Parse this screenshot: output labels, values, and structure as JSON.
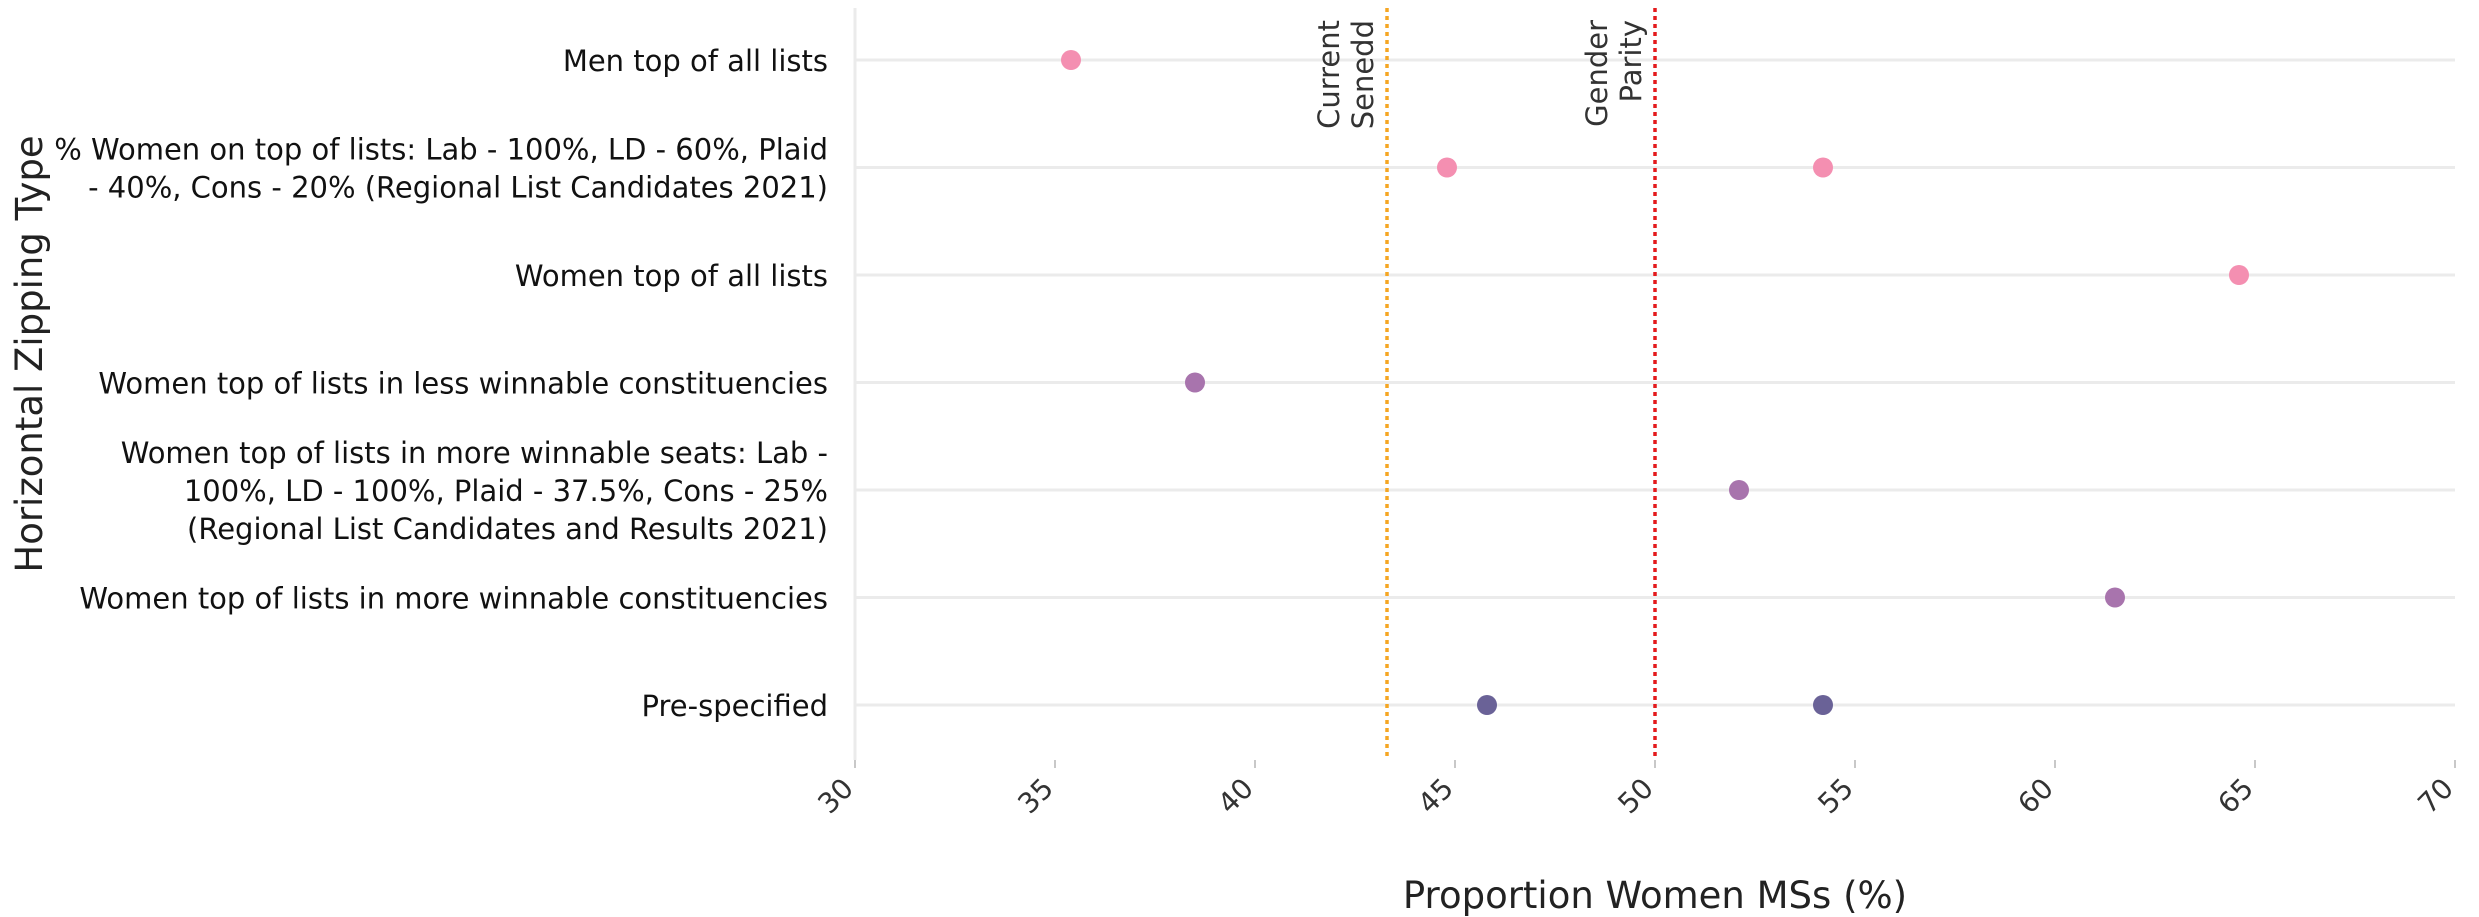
{
  "chart_data": {
    "type": "scatter",
    "title": "",
    "xlabel": "Proportion Women MSs (%)",
    "ylabel": "Horizontal Zipping Type",
    "xlim": [
      30,
      70
    ],
    "xticks": [
      30,
      35,
      40,
      45,
      50,
      55,
      60,
      65,
      70
    ],
    "grid": true,
    "categories": [
      {
        "lines": [
          "Men top of all lists"
        ],
        "color": "#f48fb1",
        "values": [
          35.4
        ]
      },
      {
        "lines": [
          "% Women on top of lists: Lab - 100%, LD - 60%, Plaid",
          "- 40%, Cons - 20% (Regional List Candidates 2021)"
        ],
        "color": "#f48fb1",
        "values": [
          44.8,
          54.2
        ]
      },
      {
        "lines": [
          "Women top of all lists"
        ],
        "color": "#f48fb1",
        "values": [
          64.6
        ]
      },
      {
        "lines": [
          "Women top of lists in less winnable constituencies"
        ],
        "color": "#a874ad",
        "values": [
          38.5
        ]
      },
      {
        "lines": [
          "Women top of lists in more winnable seats: Lab -",
          "100%, LD - 100%, Plaid - 37.5%, Cons - 25%",
          "(Regional List Candidates and Results 2021)"
        ],
        "color": "#a874ad",
        "values": [
          52.1
        ]
      },
      {
        "lines": [
          "Women top of lists in more winnable constituencies"
        ],
        "color": "#a874ad",
        "values": [
          61.5
        ]
      },
      {
        "lines": [
          "Pre-specified"
        ],
        "color": "#6a6297",
        "values": [
          45.8,
          54.2
        ]
      }
    ],
    "reference_lines": [
      {
        "value": 43.3,
        "label_lines": [
          "Current",
          "Senedd"
        ],
        "color": "#f5a623"
      },
      {
        "value": 50,
        "label_lines": [
          "Gender",
          "Parity"
        ],
        "color": "#e41a1c"
      }
    ]
  }
}
